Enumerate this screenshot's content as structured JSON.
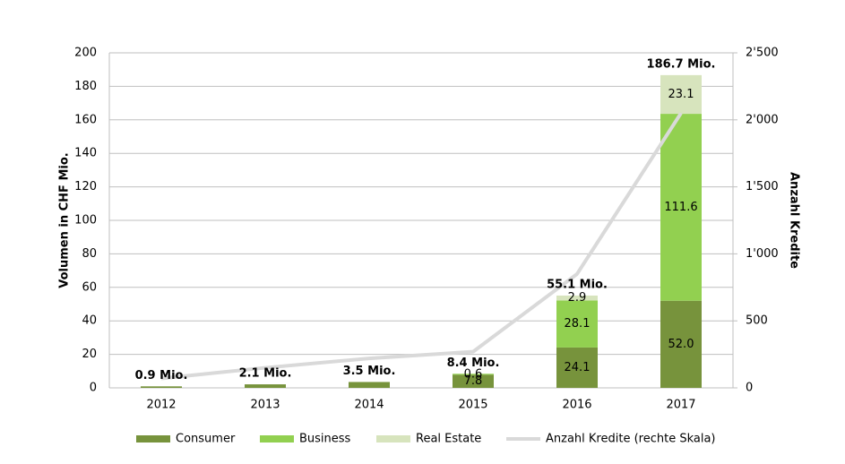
{
  "chart_data": {
    "type": "bar",
    "categories": [
      "2012",
      "2013",
      "2014",
      "2015",
      "2016",
      "2017"
    ],
    "y_label": "Volumen in CHF Mio.",
    "y2_label": "Anzahl Kredite",
    "ylim": [
      0,
      200
    ],
    "yticks": [
      0,
      20,
      40,
      60,
      80,
      100,
      120,
      140,
      160,
      180,
      200
    ],
    "y2lim": [
      0,
      2500
    ],
    "y2ticks": [
      0,
      500,
      {
        "value": 1000,
        "label": "1'000"
      },
      {
        "value": 1500,
        "label": "1'500"
      },
      {
        "value": 2000,
        "label": "2'000"
      },
      {
        "value": 2500,
        "label": "2'500"
      }
    ],
    "grid": true,
    "series": [
      {
        "name": "Consumer",
        "color": "#77933c",
        "values": [
          0.9,
          2.1,
          3.5,
          7.8,
          24.1,
          52.0
        ],
        "value_labels": [
          null,
          null,
          null,
          "7.8",
          "24.1",
          "52.0"
        ]
      },
      {
        "name": "Business",
        "color": "#92d050",
        "values": [
          null,
          null,
          null,
          0.6,
          28.1,
          111.6
        ],
        "value_labels": [
          null,
          null,
          null,
          "0.6",
          "28.1",
          "111.6"
        ]
      },
      {
        "name": "Real Estate",
        "color": "#d7e4bd",
        "values": [
          null,
          null,
          null,
          null,
          2.9,
          23.1
        ],
        "value_labels": [
          null,
          null,
          null,
          null,
          "2.9",
          "23.1"
        ]
      },
      {
        "name": "Anzahl Kredite (rechte Skala)",
        "color": "#d9d9d9",
        "axis": "y2",
        "values": [
          70,
          150,
          220,
          270,
          850,
          2050
        ]
      }
    ],
    "total_labels": [
      "0.9 Mio.",
      "2.1 Mio.",
      "3.5 Mio.",
      "8.4 Mio.",
      "55.1 Mio.",
      "186.7 Mio."
    ]
  }
}
